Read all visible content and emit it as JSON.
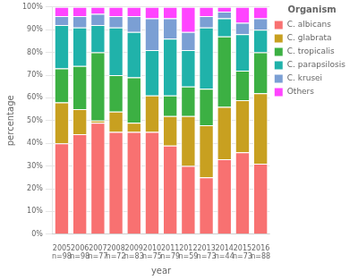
{
  "chart_data": {
    "type": "bar",
    "stacked": true,
    "categories": [
      "2005",
      "2006",
      "2007",
      "2008",
      "2009",
      "2010",
      "2011",
      "2012",
      "2013",
      "2014",
      "2015",
      "2016"
    ],
    "series": [
      {
        "name": "C. albicans",
        "color": "#F87171",
        "values": [
          40,
          44,
          49,
          45,
          45,
          45,
          39,
          30,
          25,
          33,
          36,
          31
        ]
      },
      {
        "name": "C. glabrata",
        "color": "#C8A020",
        "values": [
          18,
          11,
          1,
          9,
          4,
          16,
          13,
          22,
          23,
          23,
          23,
          31
        ]
      },
      {
        "name": "C. tropicalis",
        "color": "#3CB043",
        "values": [
          15,
          19,
          30,
          16,
          20,
          0,
          9,
          13,
          16,
          31,
          13,
          18
        ]
      },
      {
        "name": "C. parapsilosis",
        "color": "#20B2AA",
        "values": [
          19,
          17,
          12,
          21,
          20,
          20,
          25,
          16,
          27,
          8,
          16,
          10
        ]
      },
      {
        "name": "C. krusei",
        "color": "#7B9FD4",
        "values": [
          4,
          5,
          5,
          5,
          7,
          14,
          9,
          8,
          5,
          3,
          5,
          5
        ]
      },
      {
        "name": "Others",
        "color": "#FF44FF",
        "values": [
          4,
          4,
          3,
          4,
          4,
          5,
          5,
          11,
          4,
          2,
          7,
          5
        ]
      }
    ],
    "annotations": [
      {
        "x": "2005",
        "text": "n=98"
      },
      {
        "x": "2006",
        "text": "n=98"
      },
      {
        "x": "2007",
        "text": "n=77"
      },
      {
        "x": "2008",
        "text": "n=72"
      },
      {
        "x": "2009",
        "text": "n=83"
      },
      {
        "x": "2010",
        "text": "n=75"
      },
      {
        "x": "2011",
        "text": "n=79"
      },
      {
        "x": "2012",
        "text": "n=59"
      },
      {
        "x": "2013",
        "text": "n=73"
      },
      {
        "x": "2014",
        "text": "n=44"
      },
      {
        "x": "2015",
        "text": "n=73"
      },
      {
        "x": "2016",
        "text": "n=88"
      }
    ],
    "xlabel": "year",
    "ylabel": "percentage",
    "legend_title": "Organism",
    "legend": "right",
    "grid": true,
    "ylim": [
      0,
      100
    ],
    "yticks": [
      {
        "value": 0,
        "label": "0%"
      },
      {
        "value": 10,
        "label": "10%"
      },
      {
        "value": 20,
        "label": "20%"
      },
      {
        "value": 30,
        "label": "30%"
      },
      {
        "value": 40,
        "label": "40%"
      },
      {
        "value": 50,
        "label": "50%"
      },
      {
        "value": 60,
        "label": "60%"
      },
      {
        "value": 70,
        "label": "70%"
      },
      {
        "value": 80,
        "label": "80%"
      },
      {
        "value": 90,
        "label": "90%"
      },
      {
        "value": 100,
        "label": "100%"
      }
    ]
  }
}
